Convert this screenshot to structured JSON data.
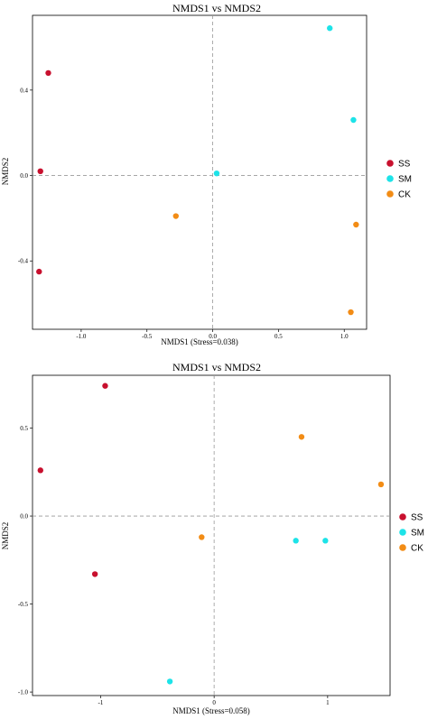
{
  "chart_data": [
    {
      "type": "scatter",
      "title": "NMDS1 vs NMDS2",
      "xlabel": "NMDS1 (Stress=0.038)",
      "ylabel": "NMDS2",
      "xlim": [
        -1.37,
        1.17
      ],
      "ylim": [
        -0.72,
        0.75
      ],
      "xticks": [
        -1.0,
        -0.5,
        0.0,
        0.5,
        1.0
      ],
      "xtick_labels": [
        "-1.0",
        "-0.5",
        "0.0",
        "0.5",
        "1.0"
      ],
      "yticks": [
        -0.4,
        0.0,
        0.4
      ],
      "ytick_labels": [
        "-0.4",
        "0.0",
        "0.4"
      ],
      "zero_lines": true,
      "legend_position": "right",
      "series": [
        {
          "name": "SS",
          "color": "#c8102e",
          "points": [
            [
              -1.25,
              0.48
            ],
            [
              -1.31,
              0.02
            ],
            [
              -1.32,
              -0.45
            ]
          ]
        },
        {
          "name": "SM",
          "color": "#1de3e8",
          "points": [
            [
              0.89,
              0.69
            ],
            [
              1.07,
              0.26
            ],
            [
              0.03,
              0.01
            ]
          ]
        },
        {
          "name": "CK",
          "color": "#f28c15",
          "points": [
            [
              -0.28,
              -0.19
            ],
            [
              1.09,
              -0.23
            ],
            [
              1.05,
              -0.64
            ]
          ]
        }
      ]
    },
    {
      "type": "scatter",
      "title": "NMDS1 vs NMDS2",
      "xlabel": "NMDS1 (Stress=0.058)",
      "ylabel": "NMDS2",
      "xlim": [
        -1.6,
        1.55
      ],
      "ylim": [
        -1.02,
        0.8
      ],
      "xticks": [
        -1,
        0,
        1
      ],
      "xtick_labels": [
        "-1",
        "0",
        "1"
      ],
      "yticks": [
        -1.0,
        -0.5,
        0.0,
        0.5
      ],
      "ytick_labels": [
        "-1.0",
        "-0.5",
        "0.0",
        "0.5"
      ],
      "zero_lines": true,
      "legend_position": "right",
      "series": [
        {
          "name": "SS",
          "color": "#c8102e",
          "points": [
            [
              -0.96,
              0.74
            ],
            [
              -1.53,
              0.26
            ],
            [
              -1.05,
              -0.33
            ]
          ]
        },
        {
          "name": "SM",
          "color": "#1de3e8",
          "points": [
            [
              0.72,
              -0.14
            ],
            [
              0.98,
              -0.14
            ],
            [
              -0.39,
              -0.94
            ]
          ]
        },
        {
          "name": "CK",
          "color": "#f28c15",
          "points": [
            [
              0.77,
              0.45
            ],
            [
              1.47,
              0.18
            ],
            [
              -0.11,
              -0.12
            ]
          ]
        }
      ]
    }
  ]
}
